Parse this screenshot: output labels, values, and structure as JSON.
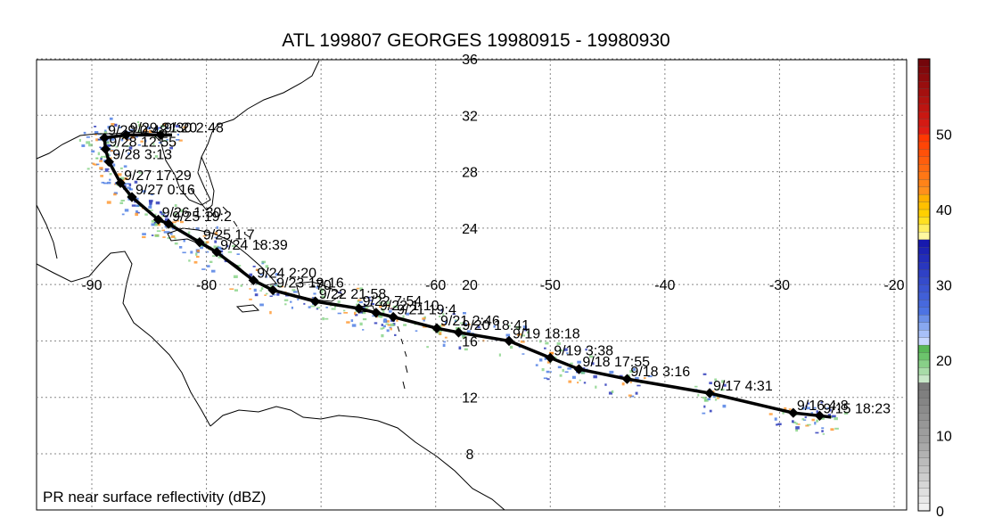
{
  "title": "ATL 199807 GEORGES 19980915 - 19980930",
  "caption": "PR near surface reflectivity (dBZ)",
  "lon_ticks": [
    "-90",
    "-80",
    "-70",
    "-60",
    "-50",
    "-40",
    "-30",
    "-20"
  ],
  "lat_ticks": [
    "36",
    "32",
    "28",
    "24",
    "20",
    "16",
    "12",
    "8"
  ],
  "colorbar": {
    "labels": [
      "50",
      "40",
      "30",
      "20",
      "10",
      "0"
    ],
    "min": 0,
    "max": 60
  },
  "track_points": [
    {
      "label": "9/15 18:23",
      "lon": -26.5,
      "lat": 10.7
    },
    {
      "label": "9/16 4:8",
      "lon": -28.8,
      "lat": 10.9
    },
    {
      "label": "9/17 4:31",
      "lon": -36.1,
      "lat": 12.3
    },
    {
      "label": "9/18 3:16",
      "lon": -43.3,
      "lat": 13.3
    },
    {
      "label": "9/18 17:55",
      "lon": -47.5,
      "lat": 14.0
    },
    {
      "label": "9/19 3:38",
      "lon": -50.0,
      "lat": 14.8
    },
    {
      "label": "9/19 18:18",
      "lon": -53.6,
      "lat": 16.0
    },
    {
      "label": "9/20 18:41",
      "lon": -58.0,
      "lat": 16.6
    },
    {
      "label": "9/21 2:46",
      "lon": -59.9,
      "lat": 16.9
    },
    {
      "label": "9/21 19:4",
      "lon": -63.7,
      "lat": 17.7
    },
    {
      "label": "9/22 1:10",
      "lon": -65.2,
      "lat": 18.0
    },
    {
      "label": "9/22 7:54",
      "lon": -66.7,
      "lat": 18.3
    },
    {
      "label": "9/22 21:58",
      "lon": -70.5,
      "lat": 18.8
    },
    {
      "label": "9/23 19:16",
      "lon": -74.2,
      "lat": 19.6
    },
    {
      "label": "9/24 2:20",
      "lon": -75.9,
      "lat": 20.3
    },
    {
      "label": "9/24 18:39",
      "lon": -79.1,
      "lat": 22.3
    },
    {
      "label": "9/25 1:7",
      "lon": -80.6,
      "lat": 23.0
    },
    {
      "label": "9/25 19:2",
      "lon": -83.3,
      "lat": 24.3
    },
    {
      "label": "9/26 1:30",
      "lon": -84.2,
      "lat": 24.6
    },
    {
      "label": "9/27 0:16",
      "lon": -86.5,
      "lat": 26.2
    },
    {
      "label": "9/27 17:29",
      "lon": -87.5,
      "lat": 27.2
    },
    {
      "label": "9/28 3:13",
      "lon": -88.5,
      "lat": 28.7
    },
    {
      "label": "9/28 12:55",
      "lon": -88.8,
      "lat": 29.6
    },
    {
      "label": "9/29 0:48",
      "lon": -88.9,
      "lat": 30.4
    },
    {
      "label": "9/29 21:20",
      "lon": -87.0,
      "lat": 30.6
    },
    {
      "label": "9/30 2:48",
      "lon": -84.0,
      "lat": 30.6
    }
  ],
  "colors": {
    "track": "#000000",
    "grid": "#888888",
    "land": "#000000",
    "rain_green": "#7ccf7c",
    "rain_blue": "#3a6fe0",
    "rain_dark": "#1020b0",
    "rain_orange": "#ff8c1a"
  }
}
